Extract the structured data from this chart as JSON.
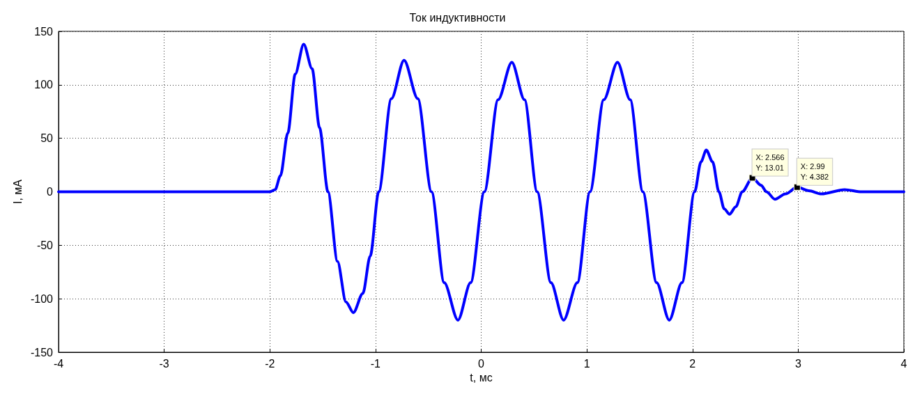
{
  "chart_data": {
    "type": "line",
    "title": "Ток индуктивности",
    "xlabel": "t, мс",
    "ylabel": "I, мА",
    "xlim": [
      -4,
      4
    ],
    "xticks": [
      -4,
      -3,
      -2,
      -1,
      0,
      1,
      2,
      3,
      4
    ],
    "ylim": [
      -150,
      150
    ],
    "yticks": [
      -150,
      -100,
      -50,
      0,
      50,
      100,
      150
    ],
    "grid": true,
    "marker": "none",
    "line_style": "solid",
    "series": [
      {
        "color": "#0000ff",
        "x": [
          -4,
          -2,
          -1.95,
          -1.9,
          -1.83,
          -1.76,
          -1.68,
          -1.6,
          -1.53,
          -1.45,
          -1.36,
          -1.28,
          -1.21,
          -1.12,
          -1.05,
          -0.97,
          -0.85,
          -0.73,
          -0.6,
          -0.47,
          -0.35,
          -0.22,
          -0.1,
          0.03,
          0.16,
          0.29,
          0.41,
          0.53,
          0.66,
          0.78,
          0.91,
          1.03,
          1.16,
          1.29,
          1.41,
          1.53,
          1.66,
          1.78,
          1.9,
          2.02,
          2.08,
          2.13,
          2.19,
          2.25,
          2.3,
          2.35,
          2.41,
          2.47,
          2.566,
          2.65,
          2.7,
          2.78,
          2.88,
          2.99,
          3.1,
          3.22,
          3.44,
          3.6,
          4
        ],
        "values": [
          0,
          0,
          2,
          15,
          55,
          110,
          138,
          115,
          60,
          0,
          -65,
          -103,
          -113,
          -95,
          -60,
          0,
          87,
          123,
          87,
          0,
          -85,
          -120,
          -85,
          0,
          86,
          121,
          86,
          0,
          -85,
          -120,
          -85,
          0,
          86,
          121,
          86,
          0,
          -85,
          -120,
          -85,
          0,
          28,
          39,
          28,
          0,
          -16,
          -21,
          -14,
          0,
          13.01,
          6,
          0,
          -7,
          -2,
          4.382,
          1,
          -2,
          2,
          0,
          0
        ]
      }
    ],
    "annotations": [
      {
        "text": "X: 2.566\nY: 13.01",
        "x": 2.566,
        "y": 13.01
      },
      {
        "text": "X: 2.99\nY: 4.382",
        "x": 2.99,
        "y": 4.382
      }
    ]
  }
}
